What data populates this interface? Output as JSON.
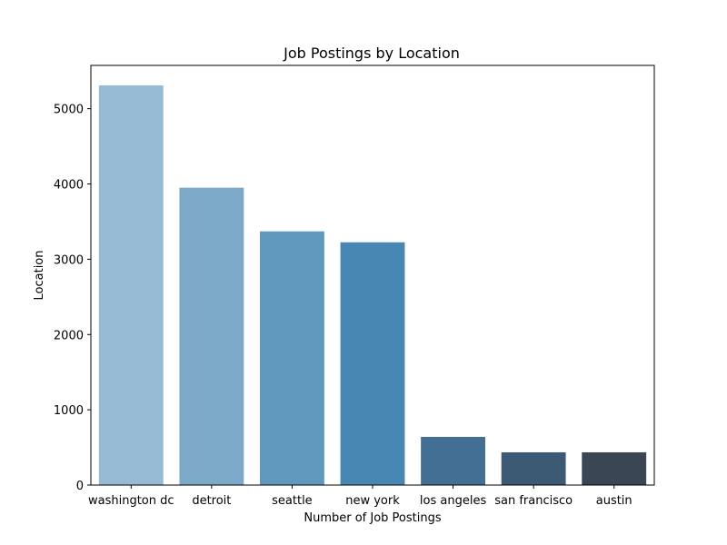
{
  "chart_data": {
    "type": "bar",
    "title": "Job Postings by Location",
    "xlabel": "Number of Job Postings",
    "ylabel": "Location",
    "categories": [
      "washington dc",
      "detroit",
      "seattle",
      "new york",
      "los angeles",
      "san francisco",
      "austin"
    ],
    "values": [
      5310,
      3950,
      3370,
      3225,
      640,
      435,
      435
    ],
    "colors": [
      "#97bbd5",
      "#7ca9c8",
      "#6198bd",
      "#4886b4",
      "#426f93",
      "#3d5a74",
      "#3a4653"
    ],
    "ylim": [
      0,
      5575
    ],
    "yticks": [
      0,
      1000,
      2000,
      3000,
      4000,
      5000
    ],
    "grid": false,
    "legend": "none"
  }
}
